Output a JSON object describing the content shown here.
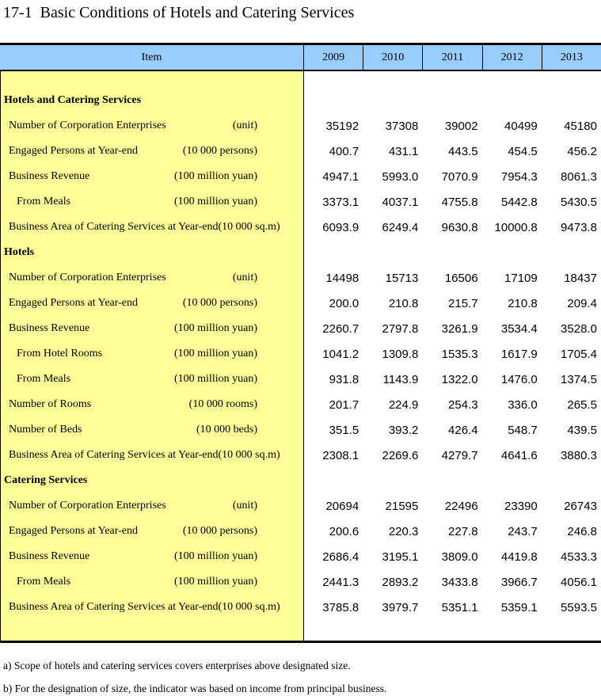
{
  "title": "17-1  Basic Conditions of Hotels and Catering Services",
  "colors": {
    "header_background": "#99CCFF",
    "item_column_background": "#FFFF99",
    "border": "#000000",
    "text": "#000000"
  },
  "table": {
    "header": {
      "item_label": "Item",
      "years": [
        "2009",
        "2010",
        "2011",
        "2012",
        "2013"
      ]
    },
    "sections": [
      {
        "heading": "Hotels and Catering Services",
        "rows": [
          {
            "label": "Number of Corporation Enterprises",
            "unit": "(unit)",
            "indent": 1,
            "values": [
              "35192",
              "37308",
              "39002",
              "40499",
              "45180"
            ]
          },
          {
            "label": "Engaged Persons at Year-end",
            "unit": "(10 000 persons)",
            "indent": 1,
            "values": [
              "400.7",
              "431.1",
              "443.5",
              "454.5",
              "456.2"
            ]
          },
          {
            "label": "Business Revenue",
            "unit": "(100 million yuan)",
            "indent": 1,
            "values": [
              "4947.1",
              "5993.0",
              "7070.9",
              "7954.3",
              "8061.3"
            ]
          },
          {
            "label": "From Meals",
            "unit": "(100 million yuan)",
            "indent": 2,
            "values": [
              "3373.1",
              "4037.1",
              "4755.8",
              "5442.8",
              "5430.5"
            ]
          },
          {
            "label": "Business Area of Catering Services at Year-end(10 000 sq.m)",
            "unit": "",
            "indent": 1,
            "values": [
              "6093.9",
              "6249.4",
              "9630.8",
              "10000.8",
              "9473.8"
            ]
          }
        ]
      },
      {
        "heading": "Hotels",
        "rows": [
          {
            "label": "Number of Corporation Enterprises",
            "unit": "(unit)",
            "indent": 1,
            "values": [
              "14498",
              "15713",
              "16506",
              "17109",
              "18437"
            ]
          },
          {
            "label": "Engaged Persons at Year-end",
            "unit": "(10 000 persons)",
            "indent": 1,
            "values": [
              "200.0",
              "210.8",
              "215.7",
              "210.8",
              "209.4"
            ]
          },
          {
            "label": "Business Revenue",
            "unit": "(100 million yuan)",
            "indent": 1,
            "values": [
              "2260.7",
              "2797.8",
              "3261.9",
              "3534.4",
              "3528.0"
            ]
          },
          {
            "label": "From Hotel Rooms",
            "unit": "(100 million yuan)",
            "indent": 2,
            "values": [
              "1041.2",
              "1309.8",
              "1535.3",
              "1617.9",
              "1705.4"
            ]
          },
          {
            "label": "From Meals",
            "unit": "(100 million yuan)",
            "indent": 2,
            "values": [
              "931.8",
              "1143.9",
              "1322.0",
              "1476.0",
              "1374.5"
            ]
          },
          {
            "label": "Number of Rooms",
            "unit": "(10 000 rooms)",
            "indent": 1,
            "values": [
              "201.7",
              "224.9",
              "254.3",
              "336.0",
              "265.5"
            ]
          },
          {
            "label": "Number of Beds",
            "unit": "(10 000 beds)",
            "indent": 1,
            "values": [
              "351.5",
              "393.2",
              "426.4",
              "548.7",
              "439.5"
            ]
          },
          {
            "label": "Business Area of Catering Services at Year-end(10 000 sq.m)",
            "unit": "",
            "indent": 1,
            "values": [
              "2308.1",
              "2269.6",
              "4279.7",
              "4641.6",
              "3880.3"
            ]
          }
        ]
      },
      {
        "heading": "Catering Services",
        "rows": [
          {
            "label": "Number of Corporation Enterprises",
            "unit": "(unit)",
            "indent": 1,
            "values": [
              "20694",
              "21595",
              "22496",
              "23390",
              "26743"
            ]
          },
          {
            "label": "Engaged Persons at Year-end",
            "unit": "(10 000 persons)",
            "indent": 1,
            "values": [
              "200.6",
              "220.3",
              "227.8",
              "243.7",
              "246.8"
            ]
          },
          {
            "label": "Business Revenue",
            "unit": "(100 million yuan)",
            "indent": 1,
            "values": [
              "2686.4",
              "3195.1",
              "3809.0",
              "4419.8",
              "4533.3"
            ]
          },
          {
            "label": "From Meals",
            "unit": "(100 million yuan)",
            "indent": 2,
            "values": [
              "2441.3",
              "2893.2",
              "3433.8",
              "3966.7",
              "4056.1"
            ]
          },
          {
            "label": "Business Area of Catering Services at Year-end(10 000 sq.m)",
            "unit": "",
            "indent": 1,
            "values": [
              "3785.8",
              "3979.7",
              "5351.1",
              "5359.1",
              "5593.5"
            ]
          }
        ]
      }
    ]
  },
  "notes": [
    "a) Scope of hotels and catering services covers enterprises above designated size.",
    "b) For the designation of size, the indicator was based on income from principal business."
  ]
}
